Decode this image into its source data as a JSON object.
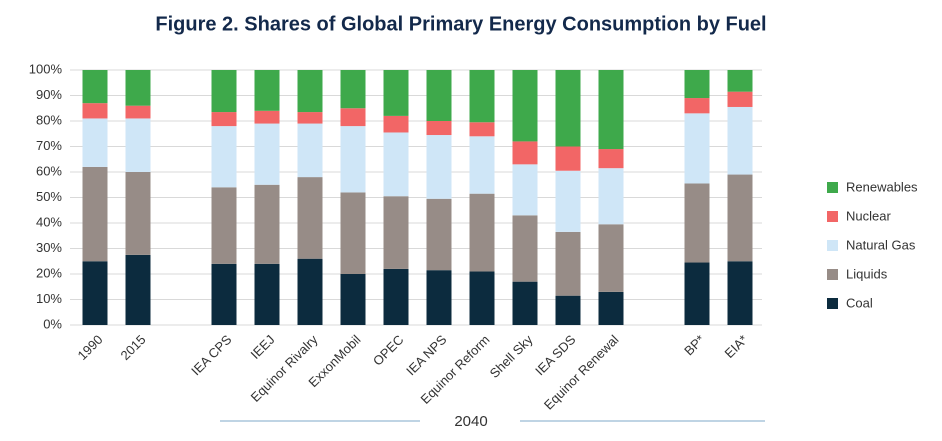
{
  "chart_data": {
    "type": "stacked_bar",
    "title": "Figure 2. Shares of Global Primary Energy Consumption by Fuel",
    "annotation": "2040",
    "categories": [
      "1990",
      "2015",
      "IEA CPS",
      "IEEJ",
      "Equinor Rivalry",
      "ExxonMobil",
      "OPEC",
      "IEA NPS",
      "Equinor Reform",
      "Shell Sky",
      "IEA SDS",
      "Equinor Renewal",
      "BP*",
      "EIA*"
    ],
    "series": [
      {
        "name": "Coal",
        "color": "#0c2b3e",
        "values": [
          25,
          27.5,
          24,
          24,
          26,
          20,
          22,
          21.5,
          21,
          17,
          11.5,
          13,
          24.5,
          25
        ]
      },
      {
        "name": "Liquids",
        "color": "#978c87",
        "values": [
          37,
          32.5,
          30,
          31,
          32,
          32,
          28.5,
          28,
          30.5,
          26,
          25,
          26.5,
          31,
          34
        ]
      },
      {
        "name": "Natural Gas",
        "color": "#cfe6f7",
        "values": [
          19,
          21,
          24,
          24,
          21,
          26,
          25,
          25,
          22.5,
          20,
          24,
          22,
          27.5,
          26.5
        ]
      },
      {
        "name": "Nuclear",
        "color": "#f26666",
        "values": [
          6,
          5,
          5.5,
          5,
          4.5,
          7,
          6.5,
          5.5,
          5.5,
          9,
          9.5,
          7.5,
          6,
          6
        ]
      },
      {
        "name": "Renewables",
        "color": "#3ea94b",
        "values": [
          13,
          14,
          16.5,
          16,
          16.5,
          15,
          18,
          20,
          20.5,
          28,
          30,
          31,
          11,
          8.5
        ]
      }
    ],
    "ylim": [
      0,
      100
    ],
    "yticks": [
      {
        "value": 0,
        "label": "0%"
      },
      {
        "value": 10,
        "label": "10%"
      },
      {
        "value": 20,
        "label": "20%"
      },
      {
        "value": 30,
        "label": "30%"
      },
      {
        "value": 40,
        "label": "40%"
      },
      {
        "value": 50,
        "label": "50%"
      },
      {
        "value": 60,
        "label": "60%"
      },
      {
        "value": 70,
        "label": "70%"
      },
      {
        "value": 80,
        "label": "80%"
      },
      {
        "value": 90,
        "label": "90%"
      },
      {
        "value": 100,
        "label": "100%"
      }
    ],
    "grid": true
  }
}
